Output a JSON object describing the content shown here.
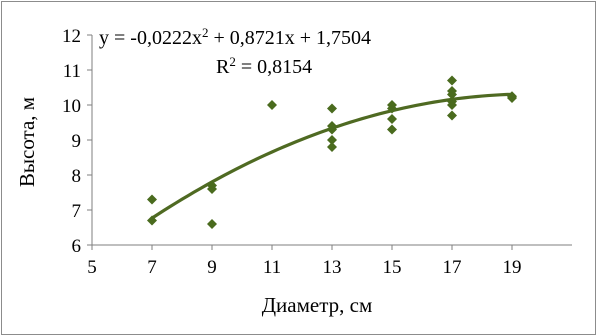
{
  "chart_data": {
    "type": "scatter",
    "title": "",
    "xlabel": "Диаметр, см",
    "ylabel": "Высота, м",
    "xlim": [
      5,
      21
    ],
    "ylim": [
      6,
      12
    ],
    "x_ticks": [
      5,
      7,
      9,
      11,
      13,
      15,
      17,
      19
    ],
    "y_ticks": [
      6,
      7,
      8,
      9,
      10,
      11,
      12
    ],
    "x_tick_labels": [
      "5",
      "7",
      "9",
      "11",
      "13",
      "15",
      "17",
      "19"
    ],
    "y_tick_labels": [
      "6",
      "7",
      "8",
      "9",
      "10",
      "11",
      "12"
    ],
    "grid": false,
    "legend": "none",
    "marker": "diamond",
    "marker_color": "#4a6b1e",
    "trendline_color": "#4f6a22",
    "series": [
      {
        "points": [
          {
            "x": 7,
            "y": 7.3
          },
          {
            "x": 7,
            "y": 6.7
          },
          {
            "x": 9,
            "y": 7.7
          },
          {
            "x": 9,
            "y": 7.6
          },
          {
            "x": 9,
            "y": 6.6
          },
          {
            "x": 11,
            "y": 10.0
          },
          {
            "x": 13,
            "y": 9.9
          },
          {
            "x": 13,
            "y": 9.4
          },
          {
            "x": 13,
            "y": 9.3
          },
          {
            "x": 13,
            "y": 9.0
          },
          {
            "x": 13,
            "y": 8.8
          },
          {
            "x": 15,
            "y": 10.0
          },
          {
            "x": 15,
            "y": 9.9
          },
          {
            "x": 15,
            "y": 9.6
          },
          {
            "x": 15,
            "y": 9.3
          },
          {
            "x": 17,
            "y": 10.7
          },
          {
            "x": 17,
            "y": 10.4
          },
          {
            "x": 17,
            "y": 10.3
          },
          {
            "x": 17,
            "y": 10.1
          },
          {
            "x": 17,
            "y": 10.0
          },
          {
            "x": 17,
            "y": 9.7
          },
          {
            "x": 19,
            "y": 10.25
          },
          {
            "x": 19,
            "y": 10.2
          }
        ]
      }
    ],
    "trendline": {
      "type": "polynomial",
      "coefficients": [
        1.7504,
        0.8721,
        -0.0222
      ],
      "x_range": [
        7,
        19
      ]
    },
    "annotations": {
      "equation_prefix": "y = -0,0222x",
      "equation_sup": "2",
      "equation_suffix": " + 0,8721x + 1,7504",
      "r2_prefix": "R",
      "r2_sup": "2",
      "r2_suffix": " = 0,8154"
    }
  }
}
